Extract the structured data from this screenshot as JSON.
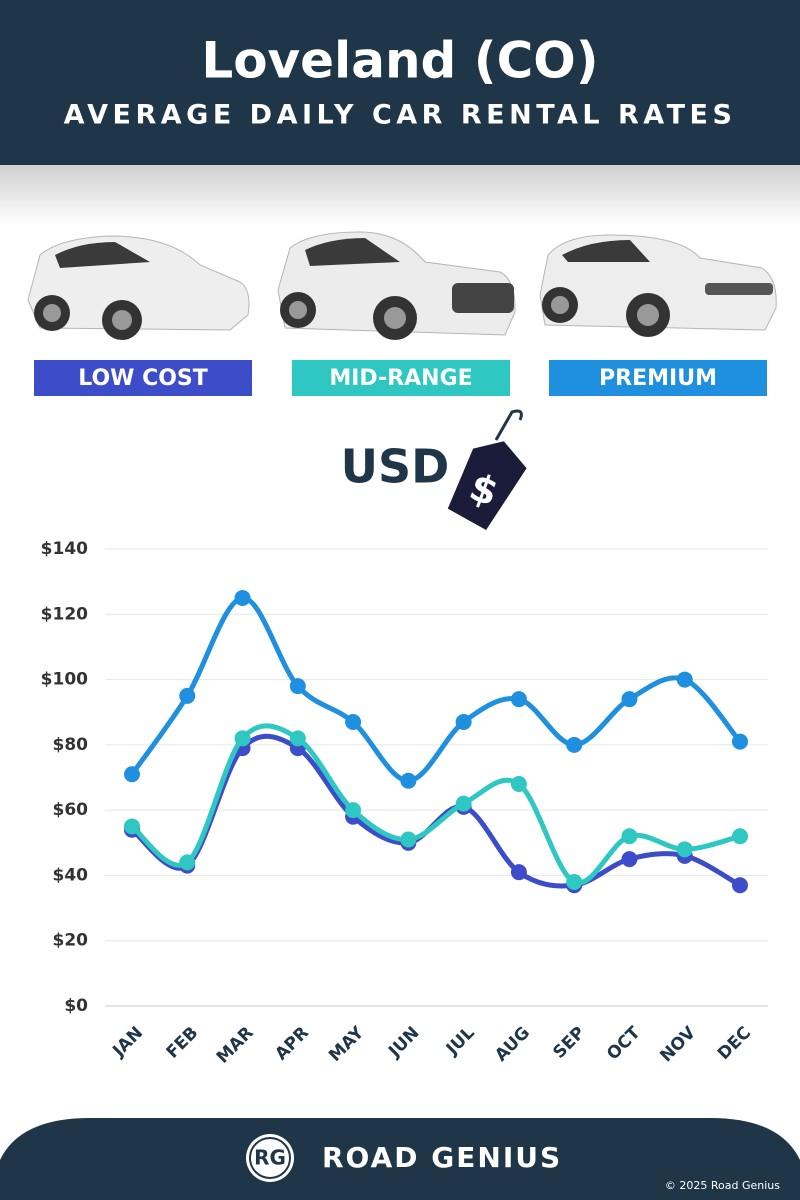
{
  "chart_data": {
    "type": "line",
    "title": "Loveland (CO)",
    "subtitle": "AVERAGE DAILY CAR RENTAL RATES",
    "categories": [
      "JAN",
      "FEB",
      "MAR",
      "APR",
      "MAY",
      "JUN",
      "JUL",
      "AUG",
      "SEP",
      "OCT",
      "NOV",
      "DEC"
    ],
    "series": [
      {
        "name": "LOW COST",
        "color": "#3d4cc8",
        "values": [
          54,
          43,
          79,
          79,
          58,
          50,
          61,
          41,
          37,
          45,
          46,
          37
        ]
      },
      {
        "name": "MID-RANGE",
        "color": "#2fc7c1",
        "values": [
          55,
          44,
          82,
          82,
          60,
          51,
          62,
          68,
          38,
          52,
          48,
          52
        ]
      },
      {
        "name": "PREMIUM",
        "color": "#1f8fdf",
        "values": [
          71,
          95,
          125,
          98,
          87,
          69,
          87,
          94,
          80,
          94,
          100,
          81
        ]
      }
    ],
    "ylim": [
      0,
      140
    ],
    "yticks": [
      {
        "value": 0,
        "label": "$0"
      },
      {
        "value": 20,
        "label": "$20"
      },
      {
        "value": 40,
        "label": "$40"
      },
      {
        "value": 60,
        "label": "$60"
      },
      {
        "value": 80,
        "label": "$80"
      },
      {
        "value": 100,
        "label": "$100"
      },
      {
        "value": 120,
        "label": "$120"
      },
      {
        "value": 140,
        "label": "$140"
      }
    ],
    "grid": true,
    "smooth": true
  },
  "currency": {
    "code": "USD",
    "symbol": "$"
  },
  "footer": {
    "logo": "RG",
    "brand": "ROAD GENIUS",
    "copyright": "© 2025 Road Genius"
  }
}
